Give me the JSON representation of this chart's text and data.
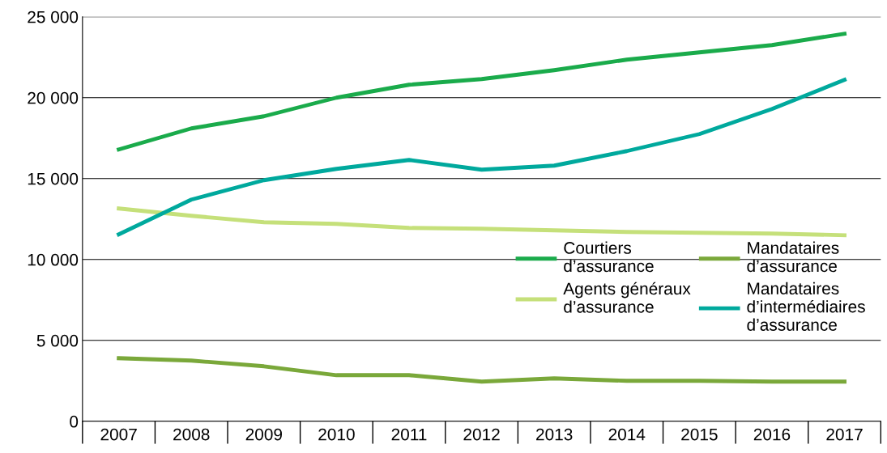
{
  "chart_data": {
    "type": "line",
    "categories": [
      "2007",
      "2008",
      "2009",
      "2010",
      "2011",
      "2012",
      "2013",
      "2014",
      "2015",
      "2016",
      "2017"
    ],
    "ylim": [
      0,
      25000
    ],
    "yticks": [
      {
        "value": 0,
        "label": "0"
      },
      {
        "value": 5000,
        "label": "5 000"
      },
      {
        "value": 10000,
        "label": "10 000"
      },
      {
        "value": 15000,
        "label": "15 000"
      },
      {
        "value": 20000,
        "label": "20 000"
      },
      {
        "value": 25000,
        "label": "25 000"
      }
    ],
    "grid": "y",
    "legend": "right",
    "marker": "none",
    "line_style": "solid",
    "series": [
      {
        "name": "Courtiers\nd’assurance",
        "color": "#1aab4b",
        "values": [
          16800,
          18100,
          18850,
          20000,
          20800,
          21150,
          21700,
          22350,
          22800,
          23250,
          23950
        ]
      },
      {
        "name": "Agents généraux\nd’assurance",
        "color": "#c5e07a",
        "values": [
          13150,
          12700,
          12300,
          12200,
          11950,
          11900,
          11800,
          11700,
          11650,
          11600,
          11500
        ]
      },
      {
        "name": "Mandataires\nd’assurance",
        "color": "#7aa83a",
        "values": [
          3900,
          3750,
          3400,
          2850,
          2850,
          2450,
          2650,
          2500,
          2500,
          2450,
          2450
        ]
      },
      {
        "name": "Mandataires\nd’intermédiaires\nd’assurance",
        "color": "#00a99d",
        "values": [
          11550,
          13700,
          14900,
          15600,
          16150,
          15550,
          15800,
          16700,
          17750,
          19300,
          21100
        ]
      }
    ]
  }
}
